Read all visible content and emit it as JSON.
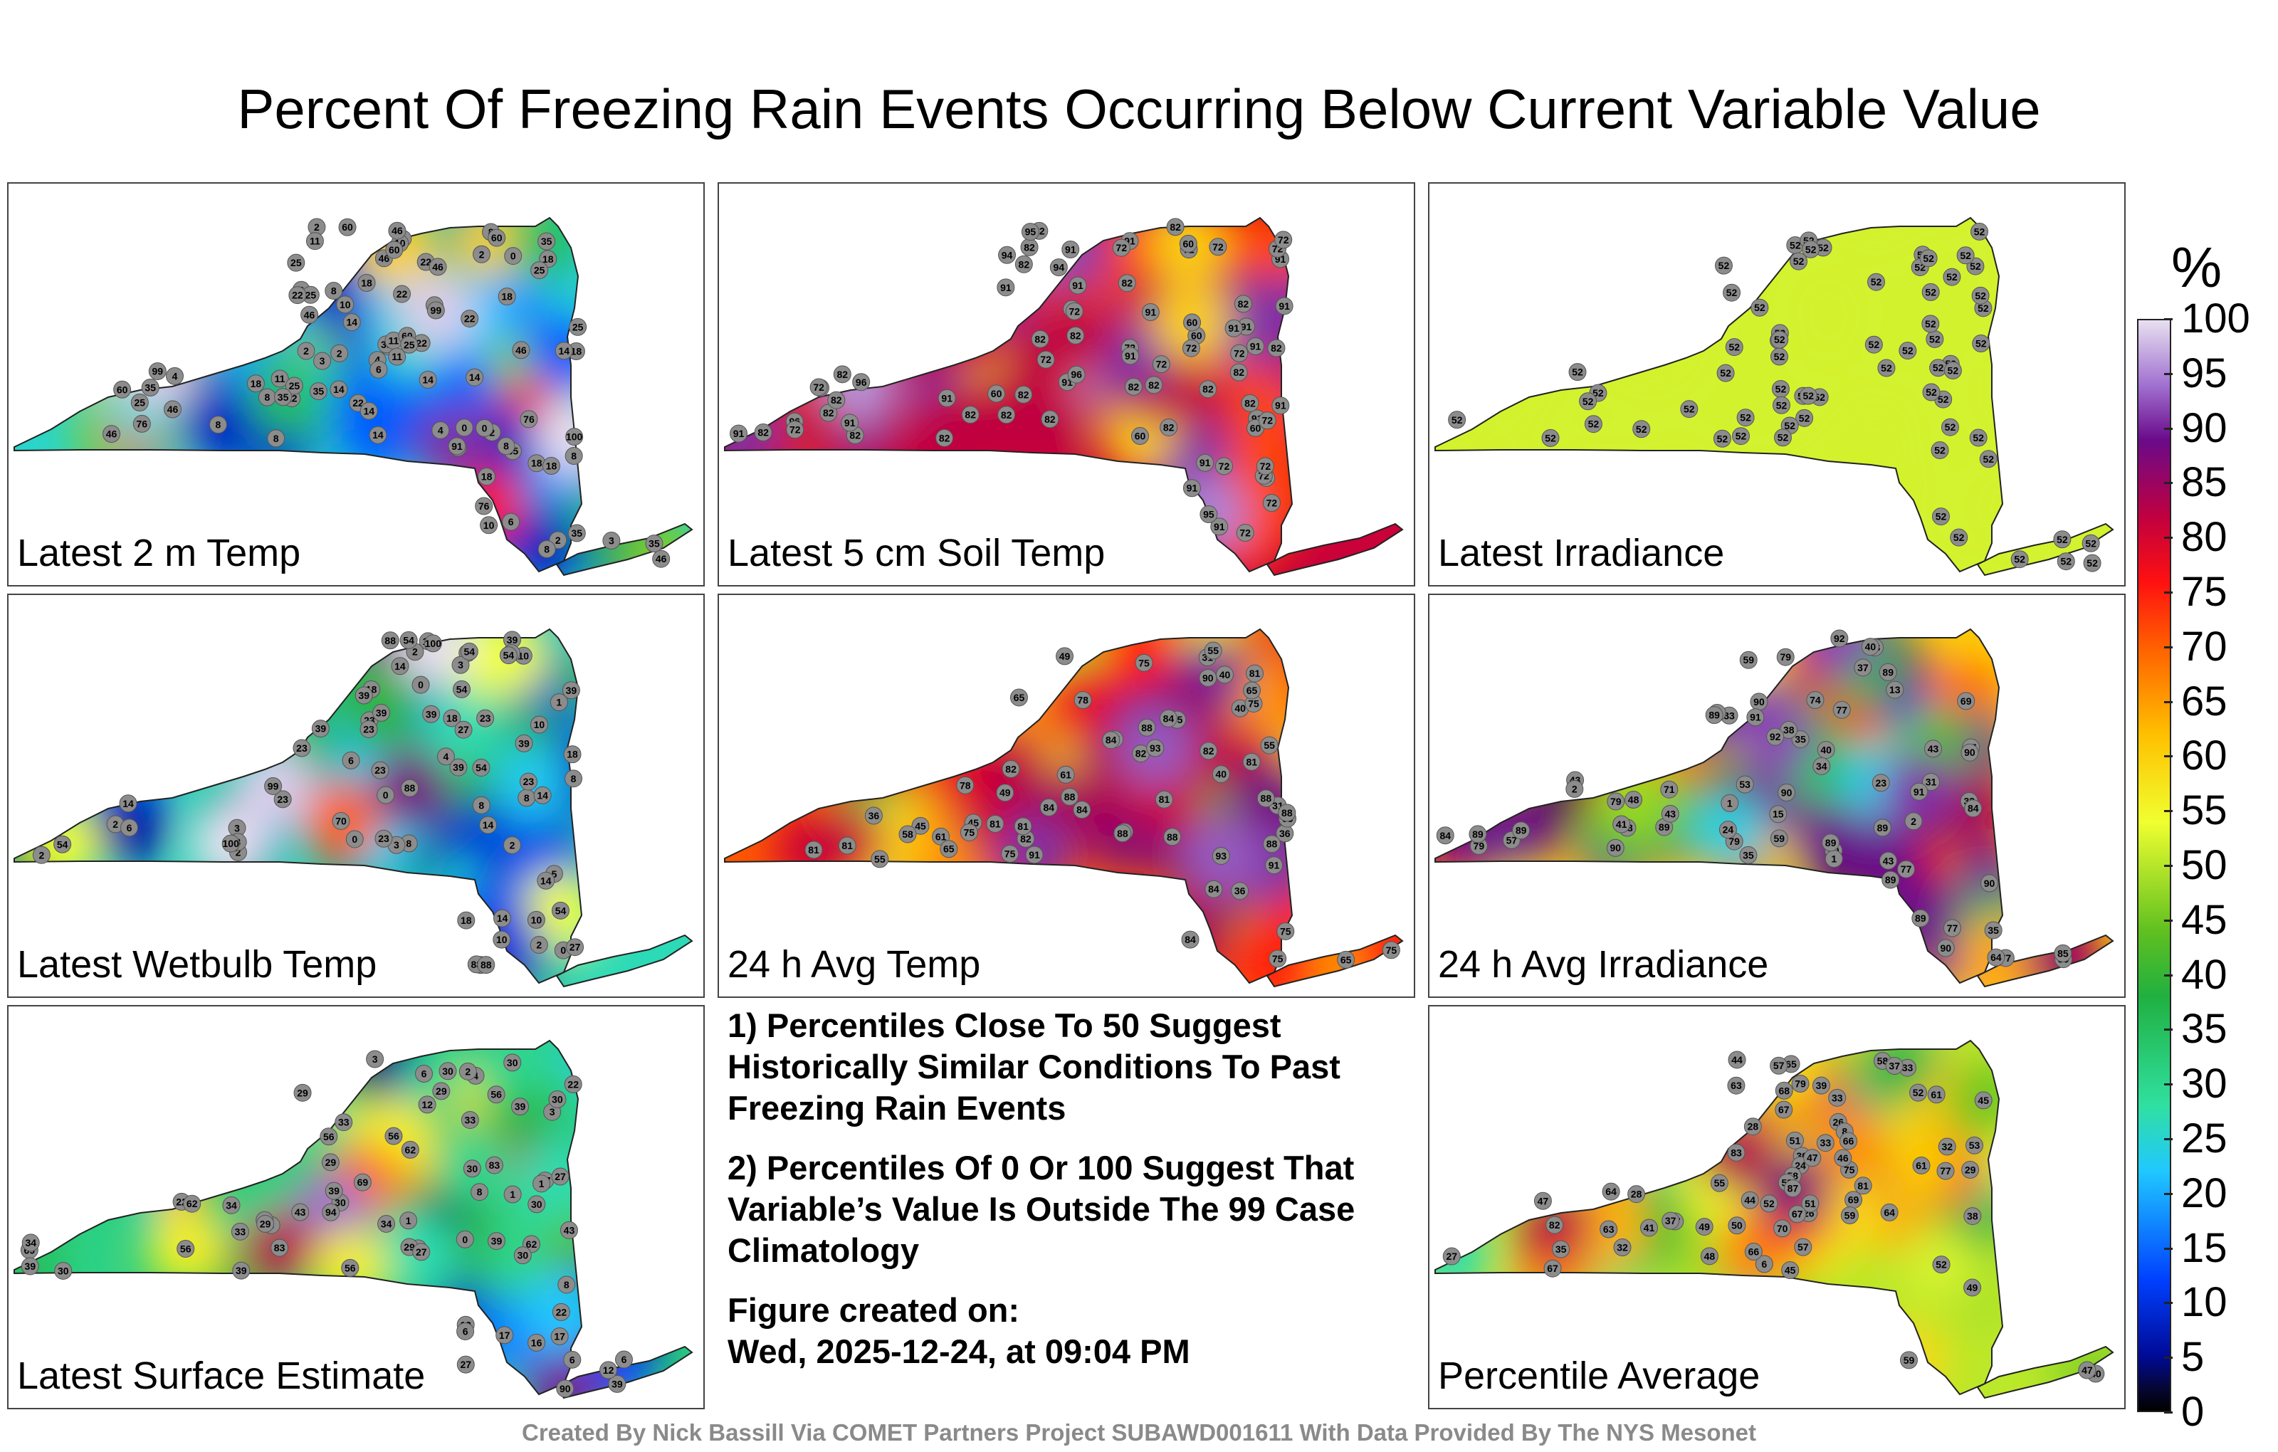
{
  "title": "Percent Of Freezing Rain Events Occurring Below Current Variable Value",
  "panels": [
    {
      "label": "Latest 2 m Temp"
    },
    {
      "label": "Latest 5 cm Soil Temp"
    },
    {
      "label": "Latest Irradiance"
    },
    {
      "label": "Latest Wetbulb Temp"
    },
    {
      "label": "24 h Avg Temp"
    },
    {
      "label": "24 h Avg Irradiance"
    },
    {
      "label": "Latest Surface Estimate"
    },
    {
      "label": "Percentile Average"
    }
  ],
  "notes": {
    "note1": "1) Percentiles Close To 50 Suggest Historically Similar Conditions To Past Freezing Rain Events",
    "note2": "2) Percentiles Of 0 Or 100 Suggest That Variable’s Value Is Outside The 99 Case Climatology",
    "created_label": "Figure created on:",
    "created_value": "Wed, 2025-12-24, at 09:04 PM"
  },
  "footer": "Created By Nick Bassill Via COMET Partners Project SUBAWD001611 With Data Provided By The NYS Mesonet",
  "colorbar": {
    "unit": "%",
    "ticks": [
      "0",
      "5",
      "10",
      "15",
      "20",
      "25",
      "30",
      "35",
      "40",
      "45",
      "50",
      "55",
      "60",
      "65",
      "70",
      "75",
      "80",
      "85",
      "90",
      "95",
      "100"
    ]
  },
  "chart_data": {
    "type": "heatmap",
    "title": "Percent Of Freezing Rain Events Occurring Below Current Variable Value",
    "range": [
      0,
      100
    ],
    "panels": [
      {
        "name": "Latest 2 m Temp",
        "station_values": [
          3,
          8,
          8,
          14,
          6,
          4,
          2,
          4,
          11,
          2,
          2,
          0,
          4,
          6,
          14,
          18,
          2,
          4,
          0,
          1,
          2,
          0,
          2,
          14,
          18,
          6,
          22,
          18,
          3,
          8,
          22,
          46,
          60,
          46,
          35,
          25,
          25,
          18,
          22,
          10,
          14,
          76,
          35,
          46,
          35,
          46,
          22,
          18,
          14,
          11,
          10,
          25,
          76,
          60,
          25,
          46,
          35,
          18,
          14,
          11,
          10,
          8,
          8,
          18,
          46,
          60,
          46,
          35,
          25,
          22,
          18,
          11,
          8,
          8,
          22,
          35,
          60,
          14,
          14,
          8,
          8,
          35,
          22,
          25,
          35,
          76,
          46,
          25,
          60,
          99,
          91,
          100,
          99
        ]
      },
      {
        "name": "Latest 5 cm Soil Temp",
        "station_values": [
          72,
          82,
          82,
          60,
          72,
          91,
          72,
          82,
          96,
          72,
          96,
          91,
          94,
          82,
          72,
          72,
          82,
          91,
          91,
          94,
          91,
          82,
          60,
          82,
          91,
          72,
          72,
          82,
          82,
          60,
          72,
          91,
          91,
          60,
          82,
          72,
          82,
          82,
          82,
          91,
          82,
          72,
          82,
          94,
          82,
          72,
          91,
          82,
          72,
          72,
          82,
          91,
          82,
          91,
          72,
          91,
          82,
          91,
          91,
          72,
          72,
          72,
          91,
          91,
          60,
          82,
          72,
          72,
          72,
          91,
          91,
          82,
          72,
          82,
          82,
          60,
          96,
          91,
          95,
          95
        ]
      },
      {
        "name": "Latest Irradiance",
        "station_values": [
          52,
          52,
          52,
          52,
          52,
          52,
          52,
          52,
          52,
          52,
          52,
          52,
          52,
          52,
          52,
          52,
          52,
          52,
          52,
          52,
          52,
          52,
          52,
          52,
          52,
          52,
          52,
          52,
          52,
          52,
          52,
          52,
          52,
          52,
          52,
          52,
          52,
          52,
          52,
          52,
          52,
          52,
          52,
          52,
          52,
          52,
          52,
          52,
          52,
          52,
          52,
          52,
          52,
          52,
          52,
          52,
          52,
          52,
          52,
          52,
          52,
          52,
          52,
          52,
          52,
          52
        ]
      },
      {
        "name": "Latest Wetbulb Temp",
        "station_values": [
          3,
          8,
          8,
          6,
          5,
          4,
          2,
          3,
          10,
          2,
          2,
          0,
          1,
          0,
          14,
          18,
          3,
          2,
          0,
          1,
          2,
          0,
          2,
          14,
          18,
          6,
          23,
          23,
          3,
          8,
          23,
          54,
          88,
          54,
          39,
          39,
          27,
          23,
          14,
          10,
          14,
          88,
          39,
          54,
          39,
          54,
          23,
          18,
          14,
          10,
          10,
          23,
          88,
          54,
          39,
          39,
          23,
          18,
          14,
          10,
          8,
          8,
          23,
          39,
          54,
          23,
          27,
          88,
          70,
          54,
          39,
          100,
          100,
          99
        ]
      },
      {
        "name": "24 h Avg Temp",
        "station_values": [
          36,
          31,
          36,
          45,
          49,
          55,
          49,
          65,
          55,
          40,
          36,
          31,
          40,
          75,
          58,
          40,
          45,
          55,
          61,
          82,
          81,
          75,
          84,
          88,
          81,
          75,
          81,
          75,
          65,
          61,
          78,
          84,
          75,
          82,
          75,
          84,
          65,
          75,
          81,
          88,
          81,
          82,
          75,
          65,
          81,
          88,
          84,
          65,
          88,
          78,
          84,
          75,
          82,
          88,
          81,
          75,
          90,
          84,
          88,
          88,
          93,
          91,
          91,
          93
        ]
      },
      {
        "name": "24 h Avg Irradiance",
        "station_values": [
          40,
          33,
          43,
          15,
          33,
          53,
          13,
          1,
          31,
          89,
          77,
          2,
          1,
          1,
          2,
          35,
          84,
          74,
          59,
          79,
          89,
          83,
          79,
          77,
          71,
          90,
          89,
          79,
          43,
          57,
          69,
          77,
          89,
          90,
          89,
          90,
          77,
          48,
          43,
          34,
          35,
          37,
          24,
          40,
          79,
          89,
          90,
          89,
          90,
          90,
          89,
          89,
          43,
          38,
          41,
          23,
          35,
          37,
          59,
          48,
          64,
          85,
          84,
          91,
          92,
          91,
          92,
          89,
          89
        ]
      },
      {
        "name": "Latest Surface Estimate",
        "station_values": [
          6,
          16,
          12,
          27,
          3,
          8,
          6,
          3,
          27,
          33,
          6,
          1,
          1,
          3,
          4,
          30,
          3,
          6,
          0,
          1,
          2,
          30,
          12,
          8,
          29,
          62,
          56,
          62,
          43,
          39,
          34,
          33,
          30,
          29,
          22,
          17,
          29,
          83,
          39,
          56,
          43,
          39,
          33,
          30,
          29,
          27,
          22,
          12,
          30,
          90,
          69,
          62,
          43,
          39,
          34,
          30,
          27,
          17,
          39,
          69,
          56,
          56,
          39,
          34,
          30,
          29,
          22,
          30,
          94,
          83,
          56
        ]
      },
      {
        "name": "Percentile Average",
        "station_values": [
          30,
          33,
          35,
          32,
          32,
          37,
          33,
          28,
          26,
          49,
          38,
          33,
          6,
          24,
          27,
          29,
          26,
          39,
          63,
          52,
          8,
          51,
          28,
          37,
          48,
          67,
          75,
          64,
          69,
          52,
          45,
          49,
          47,
          53,
          58,
          50,
          44,
          79,
          68,
          59,
          65,
          61,
          64,
          57,
          51,
          46,
          40,
          41,
          44,
          47,
          81,
          77,
          67,
          66,
          63,
          59,
          61,
          58,
          57,
          52,
          47,
          37,
          55,
          53,
          67,
          70,
          66,
          45,
          87,
          83,
          82
        ]
      }
    ]
  }
}
